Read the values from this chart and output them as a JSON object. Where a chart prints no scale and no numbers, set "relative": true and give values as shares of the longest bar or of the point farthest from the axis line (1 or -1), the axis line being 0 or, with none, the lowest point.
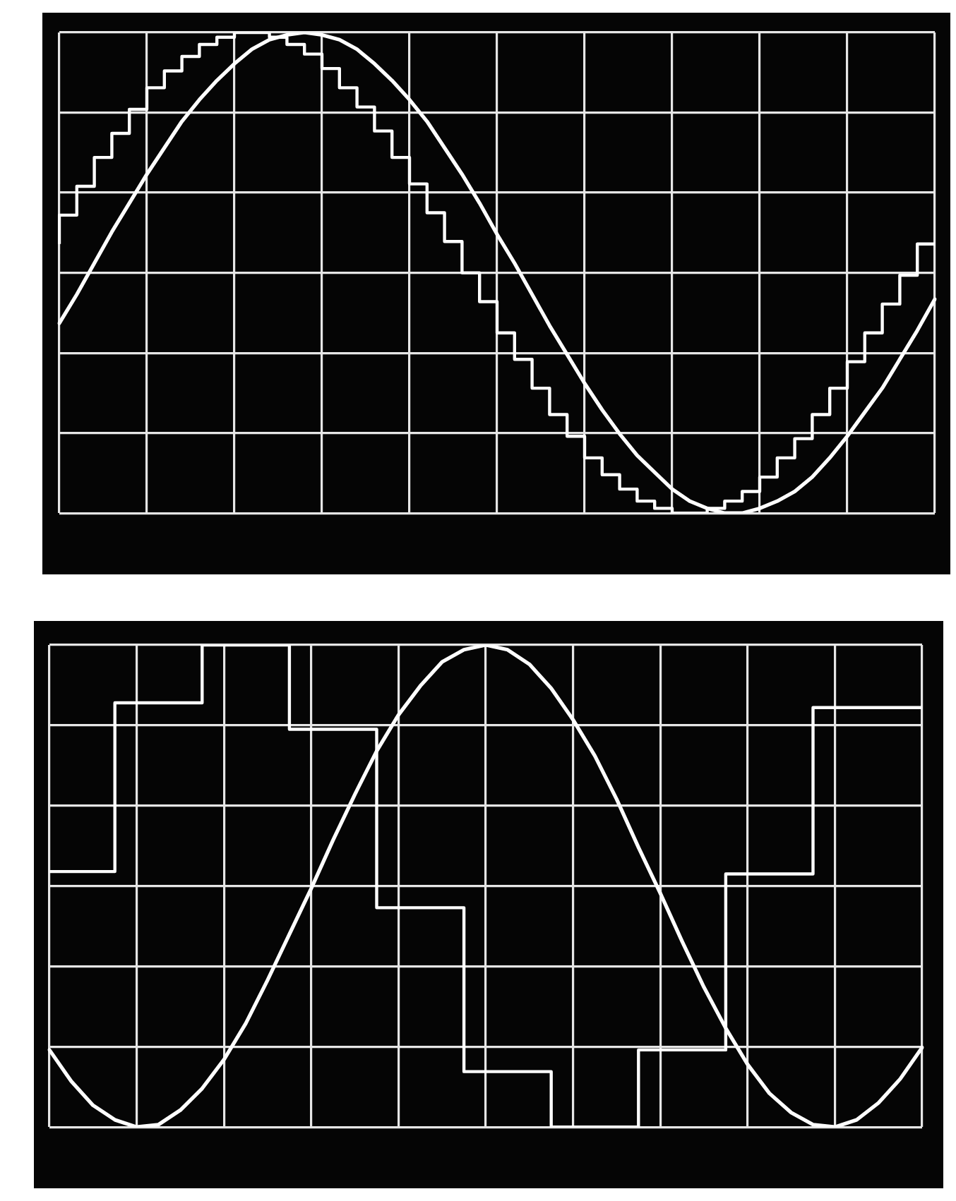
{
  "chart_data": [
    {
      "type": "line",
      "relative": true,
      "grid": true,
      "legend": false,
      "marker": "none",
      "categories": [
        null,
        null,
        null,
        null,
        null,
        null,
        null,
        null,
        null,
        null,
        null,
        null,
        null,
        null,
        null,
        null,
        null,
        null,
        null,
        null,
        null,
        null,
        null,
        null,
        null,
        null,
        null,
        null,
        null,
        null,
        null,
        null,
        null,
        null,
        null,
        null,
        null,
        null,
        null,
        null,
        null,
        null,
        null,
        null,
        null,
        null,
        null,
        null,
        null,
        null,
        null
      ],
      "series": [
        {
          "type": "line",
          "color": "#ffffff",
          "values": [
            -0.21,
            -0.09,
            0.04,
            0.17,
            0.29,
            0.41,
            0.52,
            0.63,
            0.72,
            0.8,
            0.87,
            0.93,
            0.97,
            0.99,
            1.0,
            0.99,
            0.97,
            0.93,
            0.87,
            0.8,
            0.72,
            0.63,
            0.52,
            0.41,
            0.29,
            0.16,
            0.04,
            -0.09,
            -0.22,
            -0.34,
            -0.46,
            -0.57,
            -0.67,
            -0.76,
            -0.83,
            -0.9,
            -0.95,
            -0.98,
            -1.0,
            -1.0,
            -0.98,
            -0.95,
            -0.91,
            -0.85,
            -0.77,
            -0.68,
            -0.58,
            -0.48,
            -0.36,
            -0.24,
            -0.11
          ]
        },
        {
          "type": "step",
          "color": "#ffffff",
          "values": [
            0.12,
            0.24,
            0.36,
            0.48,
            0.58,
            0.68,
            0.77,
            0.84,
            0.9,
            0.95,
            0.98,
            1.0,
            1.0,
            0.98,
            0.95,
            0.91,
            0.85,
            0.77,
            0.69,
            0.59,
            0.48,
            0.37,
            0.25,
            0.13,
            0.0,
            -0.12,
            -0.25,
            -0.36,
            -0.48,
            -0.59,
            -0.68,
            -0.77,
            -0.84,
            -0.9,
            -0.95,
            -0.98,
            -1.0,
            -1.0,
            -0.98,
            -0.95,
            -0.91,
            -0.85,
            -0.77,
            -0.69,
            -0.59,
            -0.48,
            -0.37,
            -0.25,
            -0.13,
            -0.01,
            0.12
          ]
        }
      ]
    },
    {
      "type": "line",
      "relative": true,
      "grid": true,
      "legend": false,
      "marker": "none",
      "categories": [
        null,
        null,
        null,
        null,
        null,
        null,
        null,
        null,
        null,
        null,
        null,
        null,
        null,
        null,
        null,
        null,
        null,
        null,
        null,
        null,
        null,
        null,
        null,
        null,
        null,
        null,
        null,
        null,
        null,
        null,
        null,
        null,
        null,
        null,
        null,
        null,
        null,
        null,
        null,
        null,
        null
      ],
      "series": [
        {
          "type": "line",
          "color": "#ffffff",
          "values": [
            -0.68,
            -0.81,
            -0.91,
            -0.97,
            -1.0,
            -0.99,
            -0.93,
            -0.84,
            -0.72,
            -0.57,
            -0.39,
            -0.2,
            -0.01,
            0.19,
            0.38,
            0.56,
            0.71,
            0.83,
            0.93,
            0.98,
            1.0,
            0.98,
            0.92,
            0.82,
            0.69,
            0.54,
            0.36,
            0.16,
            -0.03,
            -0.23,
            -0.42,
            -0.59,
            -0.74,
            -0.86,
            -0.94,
            -0.99,
            -1.0,
            -0.97,
            -0.9,
            -0.8,
            -0.67
          ]
        },
        {
          "type": "step",
          "color": "#ffffff",
          "values": [
            0.06,
            0.06,
            0.06,
            0.06,
            0.76,
            0.76,
            0.76,
            0.76,
            1.0,
            1.0,
            1.0,
            1.0,
            0.65,
            0.65,
            0.65,
            0.65,
            -0.09,
            -0.09,
            -0.09,
            -0.09,
            -0.77,
            -0.77,
            -0.77,
            -0.77,
            -1.0,
            -1.0,
            -1.0,
            -1.0,
            -0.68,
            -0.68,
            -0.68,
            -0.68,
            0.05,
            0.05,
            0.05,
            0.05,
            0.74,
            0.74,
            0.74,
            0.74,
            0.74
          ]
        }
      ]
    }
  ]
}
